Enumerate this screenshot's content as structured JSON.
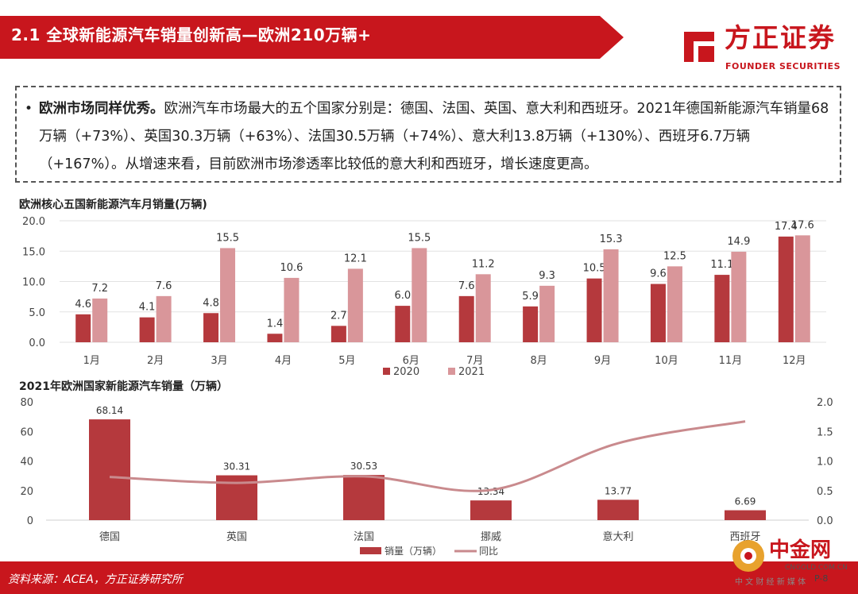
{
  "header": {
    "title": "2.1 全球新能源汽车销量创新高—欧洲210万辆+",
    "colors": {
      "banner": "#c8161d",
      "accent_dark": "#a4141a"
    }
  },
  "logo": {
    "cn": "方正证券",
    "en": "FOUNDER SECURITIES",
    "icon": "founder-logo-icon"
  },
  "summary": {
    "bullet": "•",
    "lead": "欧洲市场同样优秀。",
    "body": "欧洲汽车市场最大的五个国家分别是：德国、法国、英国、意大利和西班牙。2021年德国新能源汽车销量68万辆（+73%）、英国30.3万辆（+63%）、法国30.5万辆（+74%）、意大利13.8万辆（+130%）、西班牙6.7万辆（+167%）。从增速来看，目前欧洲市场渗透率比较低的意大利和西班牙，增长速度更高。"
  },
  "chart_data": [
    {
      "type": "bar",
      "title": "欧洲核心五国新能源汽车月销量(万辆)",
      "categories": [
        "1月",
        "2月",
        "3月",
        "4月",
        "5月",
        "6月",
        "7月",
        "8月",
        "9月",
        "10月",
        "11月",
        "12月"
      ],
      "series": [
        {
          "name": "2020",
          "color": "#b5393d",
          "values": [
            4.6,
            4.1,
            4.8,
            1.4,
            2.7,
            6.0,
            7.6,
            5.9,
            10.5,
            9.6,
            11.1,
            17.4
          ]
        },
        {
          "name": "2021",
          "color": "#d9969a",
          "values": [
            7.2,
            7.6,
            15.5,
            10.6,
            12.1,
            15.5,
            11.2,
            9.3,
            15.3,
            12.5,
            14.9,
            17.6
          ]
        }
      ],
      "ylim": [
        0,
        20
      ],
      "yticks": [
        "0.0",
        "5.0",
        "10.0",
        "15.0",
        "20.0"
      ],
      "legend": "bottom",
      "grid": true
    },
    {
      "type": "bar",
      "title": "2021年欧洲国家新能源汽车销量（万辆）",
      "categories": [
        "德国",
        "英国",
        "法国",
        "挪威",
        "意大利",
        "西班牙"
      ],
      "series": [
        {
          "name": "销量（万辆）",
          "color": "#b5393d",
          "values": [
            68.14,
            30.31,
            30.53,
            13.34,
            13.77,
            6.69
          ],
          "labels": [
            "68.14",
            "30.31",
            "30.53",
            "13.34",
            "13.77",
            "6.69"
          ]
        },
        {
          "name": "同比",
          "type": "line",
          "axis": "right",
          "color": "#c98a8d",
          "values": [
            0.73,
            0.63,
            0.74,
            0.51,
            1.3,
            1.67
          ]
        }
      ],
      "ylim": [
        0,
        80
      ],
      "yticks": [
        "0",
        "20",
        "40",
        "60",
        "80"
      ],
      "y2lim": [
        0,
        2.0
      ],
      "y2ticks": [
        "0.0",
        "0.5",
        "1.0",
        "1.5",
        "2.0"
      ],
      "legend": "bottom"
    }
  ],
  "footer": {
    "source": "资料来源：ACEA，方正证券研究所",
    "page": "P-8"
  },
  "watermark": {
    "cn": "中金网",
    "url": "CNGOLD.COM.CN",
    "tagline": "中 文 财 经 新 媒 体"
  }
}
